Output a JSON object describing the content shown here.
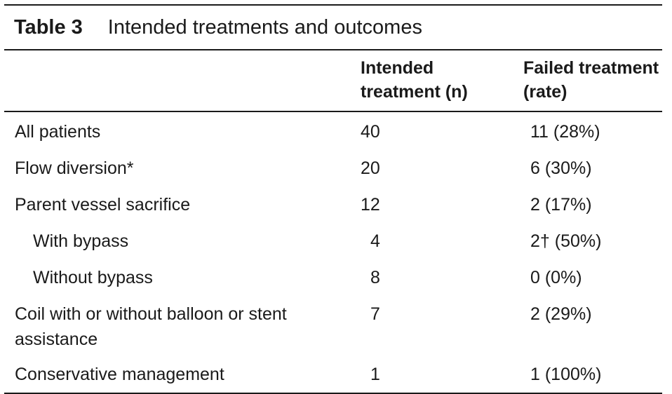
{
  "table": {
    "label": "Table 3",
    "title": "Intended treatments and outcomes",
    "headers": {
      "col1": "",
      "col2_line1": "Intended",
      "col2_line2": "treatment (n)",
      "col3_line1": "Failed treatment",
      "col3_line2": "(rate)"
    },
    "rows": [
      {
        "label": "All patients",
        "intended": "40",
        "failed": "11 (28%)"
      },
      {
        "label": "Flow diversion*",
        "intended": "20",
        "failed": "6 (30%)"
      },
      {
        "label": "Parent vessel sacrifice",
        "intended": "12",
        "failed": "2 (17%)"
      },
      {
        "label": "With bypass",
        "intended": "4",
        "failed": "2† (50%)"
      },
      {
        "label": "Without bypass",
        "intended": "8",
        "failed": "0 (0%)"
      },
      {
        "label": "Coil with or without balloon or stent assistance",
        "intended": "7",
        "failed": "2 (29%)"
      },
      {
        "label": "Conservative management",
        "intended": "1",
        "failed": "1 (100%)"
      }
    ]
  }
}
